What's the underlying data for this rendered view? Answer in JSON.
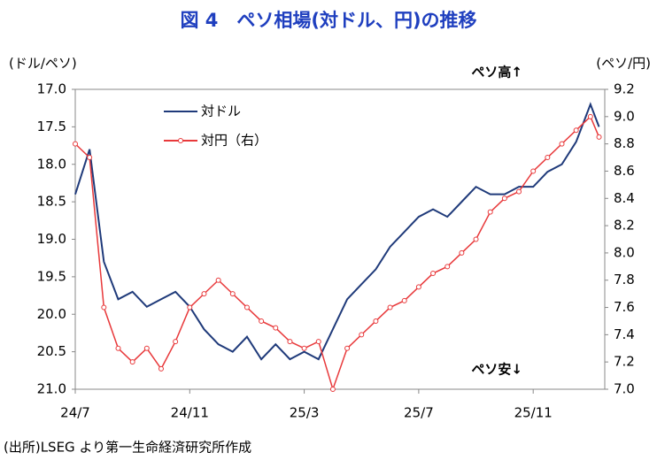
{
  "chart_data": {
    "type": "line",
    "title": "図 4　ペソ相場(対ドル、円)の推移",
    "y_label": "(ドル/ペソ)",
    "y2_label": "(ペソ/円)",
    "annotations": [
      "ペソ高↑",
      "ペソ安↓"
    ],
    "source": "(出所)LSEG より第一生命経済研究所作成",
    "legend": "upper left",
    "x": [
      0,
      0.5,
      1,
      1.5,
      2,
      2.5,
      3,
      3.5,
      4,
      4.5,
      5,
      5.5,
      6,
      6.5,
      7,
      7.5,
      8,
      8.5,
      9,
      9.5,
      10,
      10.5,
      11,
      11.5,
      12,
      12.5,
      13,
      13.5,
      14,
      14.5,
      15,
      15.5,
      16,
      16.5,
      17,
      17.5,
      18,
      18.3
    ],
    "xlim": [
      0,
      18.5
    ],
    "xticks": [
      {
        "value": 0,
        "label": "24/7"
      },
      {
        "value": 4,
        "label": "24/11"
      },
      {
        "value": 8,
        "label": "25/3"
      },
      {
        "value": 12,
        "label": "25/7"
      },
      {
        "value": 16,
        "label": "25/11"
      }
    ],
    "ylim": [
      21.0,
      17.0
    ],
    "yticks": [
      {
        "value": 17.0,
        "label": "17.0"
      },
      17.5,
      {
        "value": 18.0,
        "label": "18.0"
      },
      18.5,
      {
        "value": 19.0,
        "label": "19.0"
      },
      19.5,
      {
        "value": 20.0,
        "label": "20.0"
      },
      20.5,
      {
        "value": 21.0,
        "label": "21.0"
      }
    ],
    "y2lim": [
      7.0,
      9.2
    ],
    "y2ticks": [
      {
        "value": 7.0,
        "label": "7.0"
      },
      7.2,
      7.4,
      7.6,
      7.8,
      {
        "value": 8.0,
        "label": "8.0"
      },
      8.2,
      8.4,
      8.6,
      8.8,
      {
        "value": 9.0,
        "label": "9.0"
      },
      9.2
    ],
    "series": [
      {
        "name": "対ドル",
        "color": "#1f3a7a",
        "values": [
          18.4,
          17.8,
          19.3,
          19.8,
          19.7,
          19.9,
          19.8,
          19.7,
          19.9,
          20.2,
          20.4,
          20.5,
          20.3,
          20.6,
          20.4,
          20.6,
          20.5,
          20.6,
          20.2,
          19.8,
          19.6,
          19.4,
          19.1,
          18.9,
          18.7,
          18.6,
          18.7,
          18.5,
          18.3,
          18.4,
          18.4,
          18.3,
          18.3,
          18.1,
          18.0,
          17.7,
          17.2,
          17.5
        ]
      },
      {
        "name": "対円（右）",
        "color": "#e8393b",
        "axis": "y2",
        "values": [
          8.8,
          8.7,
          7.6,
          7.3,
          7.2,
          7.3,
          7.15,
          7.35,
          7.6,
          7.7,
          7.8,
          7.7,
          7.6,
          7.5,
          7.45,
          7.35,
          7.3,
          7.35,
          7.0,
          7.3,
          7.4,
          7.5,
          7.6,
          7.65,
          7.75,
          7.85,
          7.9,
          8.0,
          8.1,
          8.3,
          8.4,
          8.45,
          8.6,
          8.7,
          8.8,
          8.9,
          9.0,
          8.85
        ]
      }
    ]
  }
}
